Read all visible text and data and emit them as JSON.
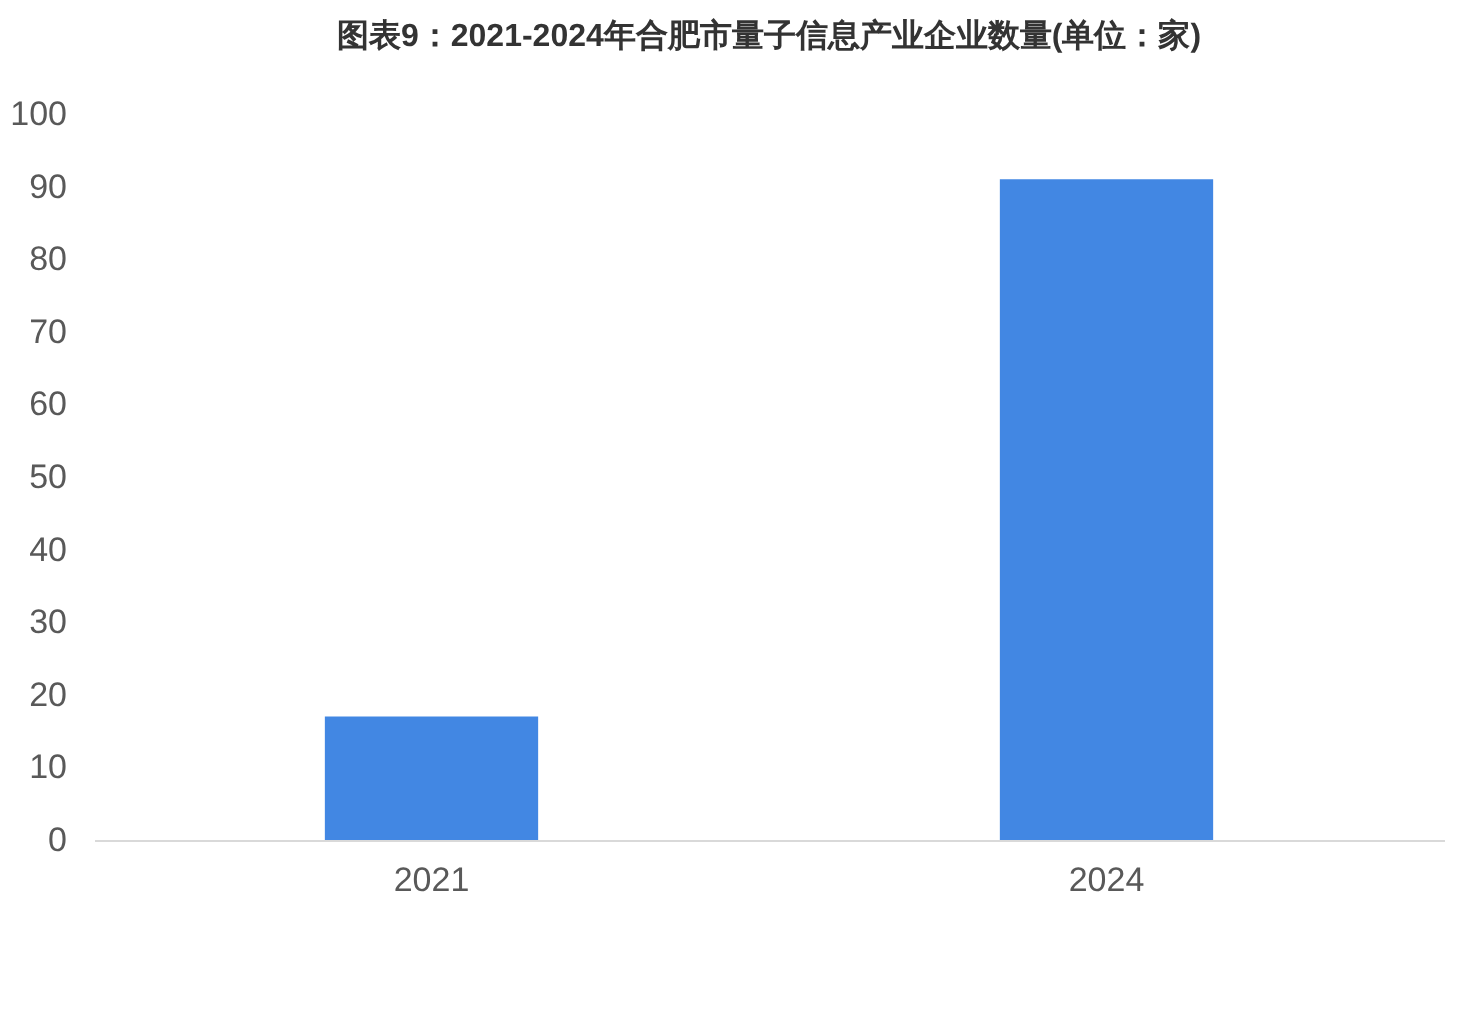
{
  "chart_data": {
    "type": "bar",
    "title": "图表9：2021-2024年合肥市量子信息产业企业数量(单位：家)",
    "categories": [
      "2021",
      "2024"
    ],
    "values": [
      17,
      91
    ],
    "color": "#4287e3",
    "ylim": [
      0,
      100
    ],
    "yticks": [
      0,
      10,
      20,
      30,
      40,
      50,
      60,
      70,
      80,
      90,
      100
    ]
  }
}
